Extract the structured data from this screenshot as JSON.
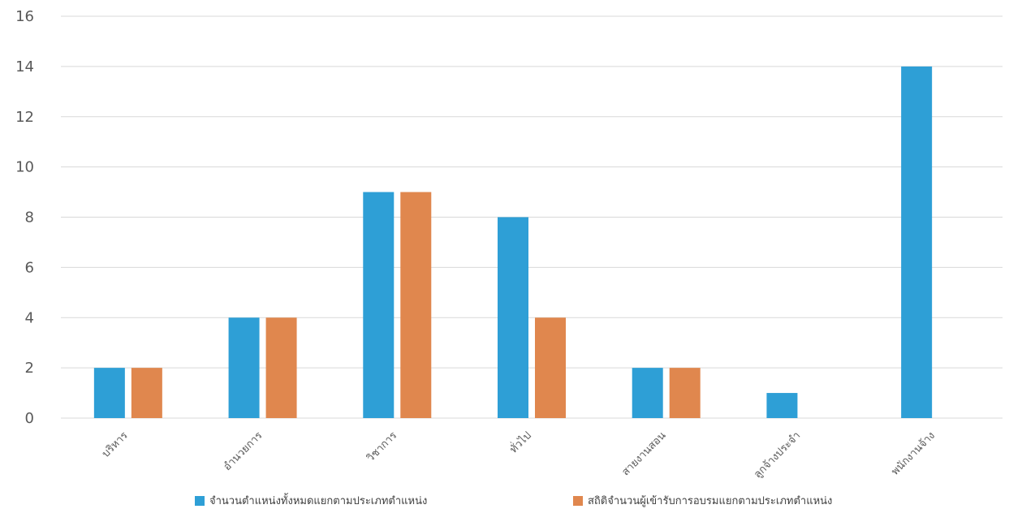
{
  "chart_data": {
    "type": "bar",
    "categories": [
      "บริหาร",
      "อำนวยการ",
      "วิชาการ",
      "ทั่วไป",
      "สายงานสอน",
      "ลูกจ้างประจำ",
      "พนักงานจ้าง"
    ],
    "series": [
      {
        "name": "จำนวนตำแหน่งทั้งหมดแยกตามประเภทตำแหน่ง",
        "color": "#2e9fd6",
        "values": [
          2,
          4,
          9,
          8,
          2,
          1,
          14
        ]
      },
      {
        "name": "สถิติจำนวนผู้เข้ารับการอบรมแยกตามประเภทตำแหน่ง",
        "color": "#e0874e",
        "values": [
          2,
          4,
          9,
          4,
          2,
          0,
          0
        ]
      }
    ],
    "yticks": [
      "0",
      "2",
      "4",
      "6",
      "8",
      "10",
      "12",
      "14",
      "16"
    ],
    "ylim": [
      0,
      16
    ],
    "grid": true,
    "legend_position": "bottom"
  }
}
